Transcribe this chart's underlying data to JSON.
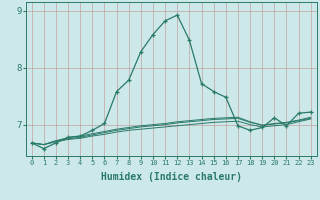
{
  "xlabel": "Humidex (Indice chaleur)",
  "background_color": "#cce8e8",
  "grid_color": "#c09090",
  "line_color": "#2a7a6a",
  "x_ticks": [
    0,
    1,
    2,
    3,
    4,
    5,
    6,
    7,
    8,
    9,
    10,
    11,
    12,
    13,
    14,
    15,
    16,
    17,
    18,
    19,
    20,
    21,
    22,
    23
  ],
  "series": [
    [
      6.68,
      6.58,
      6.68,
      6.78,
      6.8,
      6.9,
      7.02,
      7.58,
      7.78,
      8.28,
      8.58,
      8.82,
      8.92,
      8.48,
      7.72,
      7.58,
      7.48,
      6.98,
      6.9,
      6.95,
      7.12,
      6.98,
      7.2,
      7.22
    ],
    [
      6.68,
      6.65,
      6.7,
      6.74,
      6.76,
      6.8,
      6.83,
      6.87,
      6.9,
      6.92,
      6.94,
      6.96,
      6.98,
      7.0,
      7.02,
      7.04,
      7.05,
      7.06,
      7.0,
      6.96,
      6.98,
      7.0,
      7.05,
      7.1
    ],
    [
      6.68,
      6.65,
      6.71,
      6.75,
      6.78,
      6.82,
      6.86,
      6.9,
      6.93,
      6.96,
      6.98,
      7.0,
      7.03,
      7.05,
      7.07,
      7.09,
      7.1,
      7.11,
      7.04,
      6.99,
      7.02,
      7.04,
      7.08,
      7.13
    ],
    [
      6.68,
      6.65,
      6.72,
      6.77,
      6.8,
      6.84,
      6.88,
      6.92,
      6.95,
      6.98,
      7.0,
      7.02,
      7.05,
      7.07,
      7.09,
      7.11,
      7.12,
      7.13,
      7.05,
      6.99,
      7.01,
      7.03,
      7.07,
      7.11
    ]
  ],
  "ylim": [
    6.45,
    9.15
  ],
  "yticks": [
    7,
    8,
    9
  ],
  "tick_fontsize": 6,
  "xlabel_fontsize": 7
}
